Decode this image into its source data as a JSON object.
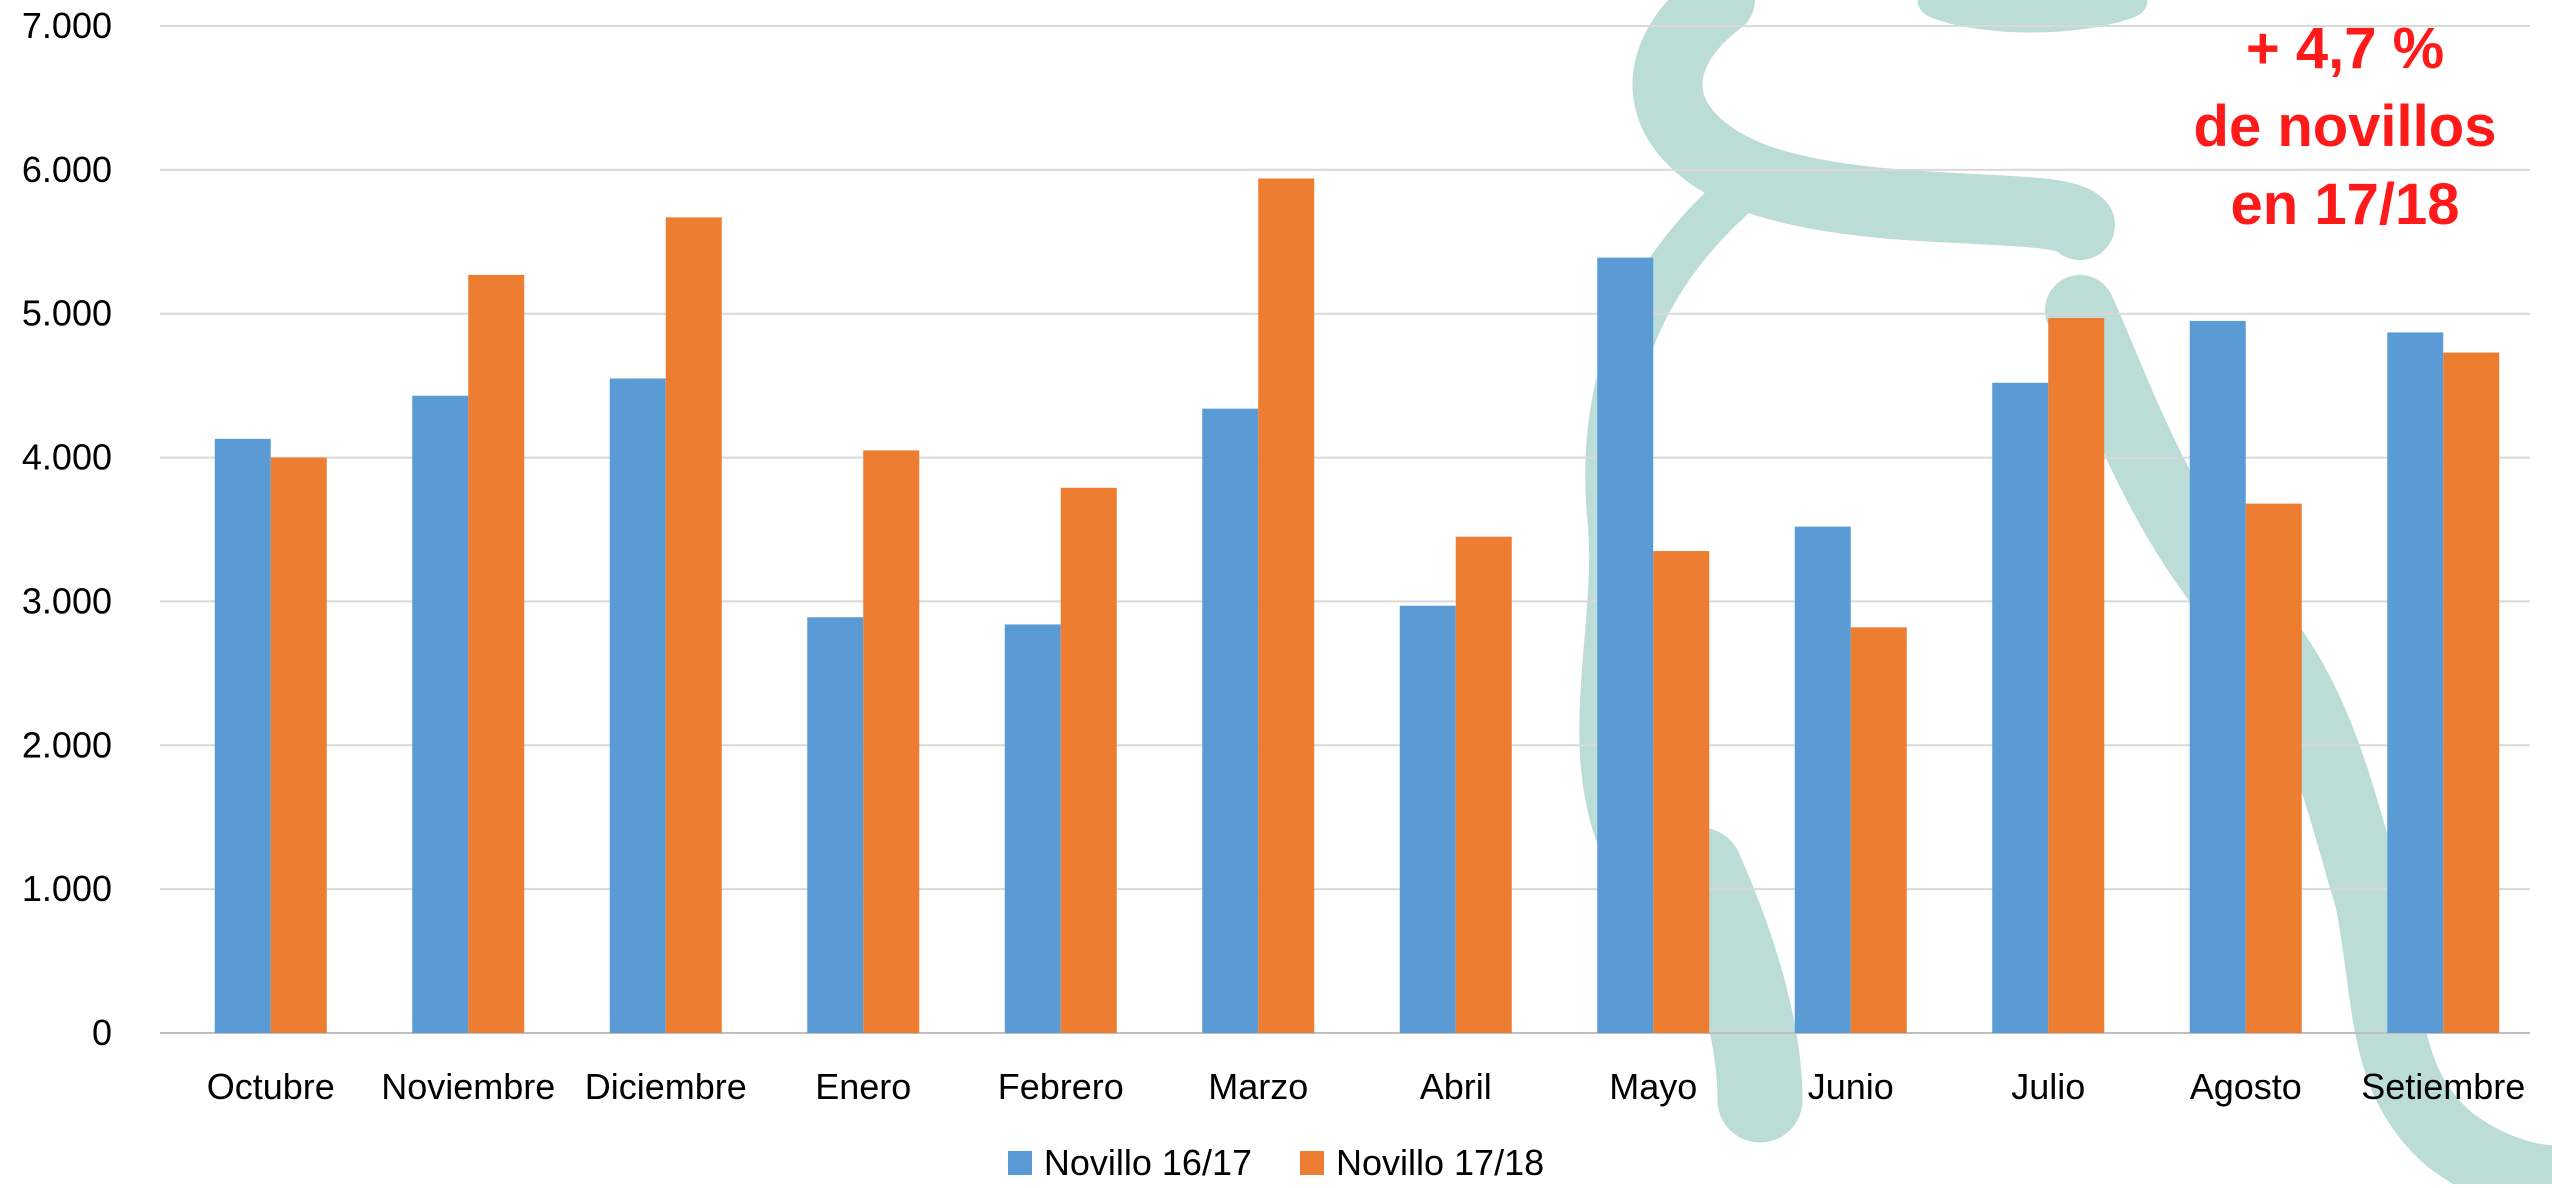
{
  "chart_data": {
    "type": "bar",
    "categories": [
      "Octubre",
      "Noviembre",
      "Diciembre",
      "Enero",
      "Febrero",
      "Marzo",
      "Abril",
      "Mayo",
      "Junio",
      "Julio",
      "Agosto",
      "Setiembre"
    ],
    "series": [
      {
        "name": "Novillo 16/17",
        "color": "#5b9bd5",
        "values": [
          4130,
          4430,
          4550,
          2890,
          2840,
          4340,
          2970,
          5390,
          3520,
          4520,
          4950,
          4870
        ]
      },
      {
        "name": "Novillo 17/18",
        "color": "#ed7d31",
        "values": [
          4000,
          5270,
          5670,
          4050,
          3790,
          5940,
          3450,
          3350,
          2820,
          4970,
          3680,
          4730
        ]
      }
    ],
    "ylim": [
      0,
      7000
    ],
    "yticks": [
      "0",
      "1.000",
      "2.000",
      "3.000",
      "4.000",
      "5.000",
      "6.000",
      "7.000"
    ],
    "grid": true,
    "legend": "bottom"
  },
  "annotation": {
    "line1": "+ 4,7 %",
    "line2": "de novillos",
    "line3": "en 17/18"
  }
}
